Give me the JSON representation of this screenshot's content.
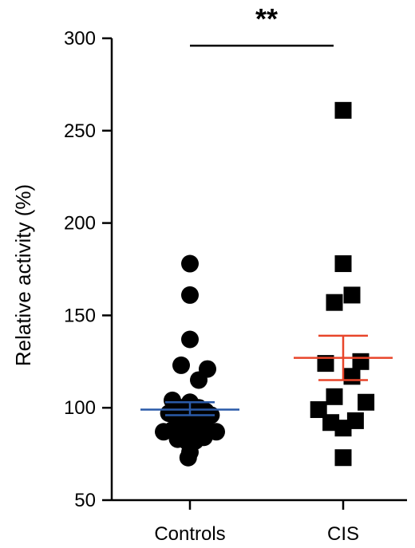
{
  "chart_data": {
    "type": "scatter",
    "title": "",
    "xlabel": "",
    "ylabel": "Relative activity (%)",
    "ylim": [
      50,
      300
    ],
    "yticks": [
      50,
      100,
      150,
      200,
      250,
      300
    ],
    "categories": [
      "Controls",
      "CIS"
    ],
    "grid": false,
    "legend": "none",
    "significance": {
      "label": "**",
      "y": 296,
      "between": [
        "Controls",
        "CIS"
      ]
    },
    "series": [
      {
        "category": "Controls",
        "marker": "circle",
        "color": "#000000",
        "summary_color": "#2a5aa8",
        "mean": 99,
        "sem_low": 96,
        "sem_high": 103,
        "points": [
          {
            "offset": 0.0,
            "y": 178
          },
          {
            "offset": 0.0,
            "y": 161
          },
          {
            "offset": 0.0,
            "y": 137
          },
          {
            "offset": -0.5,
            "y": 123
          },
          {
            "offset": 0.5,
            "y": 115
          },
          {
            "offset": 1.0,
            "y": 121
          },
          {
            "offset": -1.0,
            "y": 104
          },
          {
            "offset": -0.5,
            "y": 100
          },
          {
            "offset": 0.0,
            "y": 103
          },
          {
            "offset": 0.5,
            "y": 100
          },
          {
            "offset": 0.9,
            "y": 98
          },
          {
            "offset": -1.2,
            "y": 97
          },
          {
            "offset": -0.7,
            "y": 96
          },
          {
            "offset": 0.1,
            "y": 97
          },
          {
            "offset": 0.6,
            "y": 96
          },
          {
            "offset": 1.2,
            "y": 96
          },
          {
            "offset": -1.5,
            "y": 87
          },
          {
            "offset": -1.0,
            "y": 88
          },
          {
            "offset": -0.5,
            "y": 89
          },
          {
            "offset": 0.0,
            "y": 90
          },
          {
            "offset": 0.5,
            "y": 89
          },
          {
            "offset": 1.0,
            "y": 88
          },
          {
            "offset": 1.5,
            "y": 87
          },
          {
            "offset": -0.7,
            "y": 83
          },
          {
            "offset": -0.2,
            "y": 82
          },
          {
            "offset": 0.3,
            "y": 82
          },
          {
            "offset": 0.8,
            "y": 84
          },
          {
            "offset": 0.0,
            "y": 76
          },
          {
            "offset": -0.1,
            "y": 73
          }
        ]
      },
      {
        "category": "CIS",
        "marker": "square",
        "color": "#000000",
        "summary_color": "#e8452a",
        "mean": 127,
        "sem_low": 115,
        "sem_high": 139,
        "points": [
          {
            "offset": 0.0,
            "y": 261
          },
          {
            "offset": 0.0,
            "y": 178
          },
          {
            "offset": -0.5,
            "y": 157
          },
          {
            "offset": 0.5,
            "y": 161
          },
          {
            "offset": -1.0,
            "y": 124
          },
          {
            "offset": 1.0,
            "y": 125
          },
          {
            "offset": 0.5,
            "y": 117
          },
          {
            "offset": -0.5,
            "y": 106
          },
          {
            "offset": 1.3,
            "y": 103
          },
          {
            "offset": -1.4,
            "y": 99
          },
          {
            "offset": -0.7,
            "y": 92
          },
          {
            "offset": 0.0,
            "y": 89
          },
          {
            "offset": 0.7,
            "y": 93
          },
          {
            "offset": 0.0,
            "y": 73
          }
        ]
      }
    ]
  }
}
